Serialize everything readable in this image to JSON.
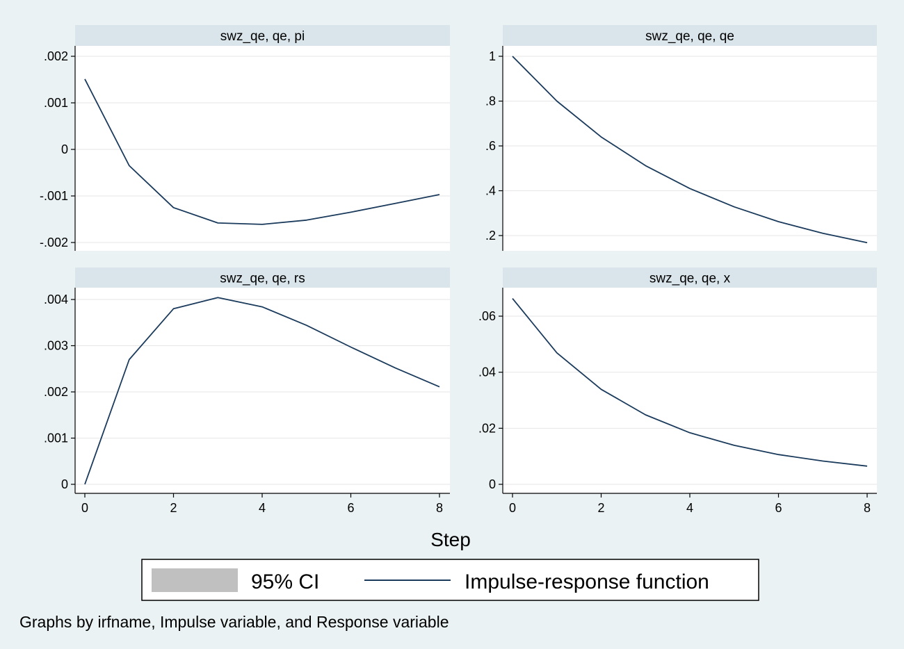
{
  "chart_data": {
    "type": "line",
    "xlabel": "Step",
    "note": "Graphs by irfname, Impulse variable, and Response variable",
    "legend": {
      "placement": "bottom",
      "entries": [
        {
          "label": "95% CI",
          "kind": "area",
          "color": "#c0c0c0"
        },
        {
          "label": "Impulse-response function",
          "kind": "line",
          "color": "#1a3a5c"
        }
      ]
    },
    "colors": {
      "background": "#eaf2f3",
      "plot_background": "#ffffff",
      "strip": "#d9e5eb",
      "grid": "#e6e6e6",
      "line": "#1a3a5c"
    },
    "grid": true,
    "panels": [
      {
        "title": "swz_qe, qe, pi",
        "x": [
          0,
          1,
          2,
          3,
          4,
          5,
          6,
          7,
          8
        ],
        "y": [
          0.00151,
          -0.00035,
          -0.00125,
          -0.00158,
          -0.00161,
          -0.00152,
          -0.00135,
          -0.00116,
          -0.00097
        ],
        "xlim": [
          0,
          8
        ],
        "ylim": [
          -0.002,
          0.002
        ],
        "xticks": [
          0,
          2,
          4,
          6,
          8
        ],
        "xtick_labels": [
          "0",
          "2",
          "4",
          "6",
          "8"
        ],
        "yticks": [
          0.002,
          0.001,
          0,
          -0.001,
          -0.002
        ],
        "ytick_labels": [
          ".002",
          ".001",
          "0",
          "-.001",
          "-.002"
        ]
      },
      {
        "title": "swz_qe, qe, qe",
        "x": [
          0,
          1,
          2,
          3,
          4,
          5,
          6,
          7,
          8
        ],
        "y": [
          1.0,
          0.8,
          0.64,
          0.512,
          0.41,
          0.328,
          0.262,
          0.21,
          0.168
        ],
        "xlim": [
          0,
          8
        ],
        "ylim": [
          0.2,
          1.0
        ],
        "xticks": [
          0,
          2,
          4,
          6,
          8
        ],
        "xtick_labels": [
          "0",
          "2",
          "4",
          "6",
          "8"
        ],
        "yticks": [
          1.0,
          0.8,
          0.6,
          0.4,
          0.2
        ],
        "ytick_labels": [
          "1",
          ".8",
          ".6",
          ".4",
          ".2"
        ]
      },
      {
        "title": "swz_qe, qe, rs",
        "x": [
          0,
          1,
          2,
          3,
          4,
          5,
          6,
          7,
          8
        ],
        "y": [
          0.0,
          0.0027,
          0.0038,
          0.00404,
          0.00384,
          0.00344,
          0.00297,
          0.00252,
          0.00211
        ],
        "xlim": [
          0,
          8
        ],
        "ylim": [
          0,
          0.004
        ],
        "xticks": [
          0,
          2,
          4,
          6,
          8
        ],
        "xtick_labels": [
          "0",
          "2",
          "4",
          "6",
          "8"
        ],
        "yticks": [
          0.004,
          0.003,
          0.002,
          0.001,
          0
        ],
        "ytick_labels": [
          ".004",
          ".003",
          ".002",
          ".001",
          "0"
        ]
      },
      {
        "title": "swz_qe, qe, x",
        "x": [
          0,
          1,
          2,
          3,
          4,
          5,
          6,
          7,
          8
        ],
        "y": [
          0.0663,
          0.0469,
          0.0339,
          0.0248,
          0.0184,
          0.0139,
          0.0106,
          0.0083,
          0.0065
        ],
        "xlim": [
          0,
          8
        ],
        "ylim": [
          0,
          0.06
        ],
        "xticks": [
          0,
          2,
          4,
          6,
          8
        ],
        "xtick_labels": [
          "0",
          "2",
          "4",
          "6",
          "8"
        ],
        "yticks": [
          0.06,
          0.04,
          0.02,
          0
        ],
        "ytick_labels": [
          ".06",
          ".04",
          ".02",
          "0"
        ]
      }
    ]
  }
}
